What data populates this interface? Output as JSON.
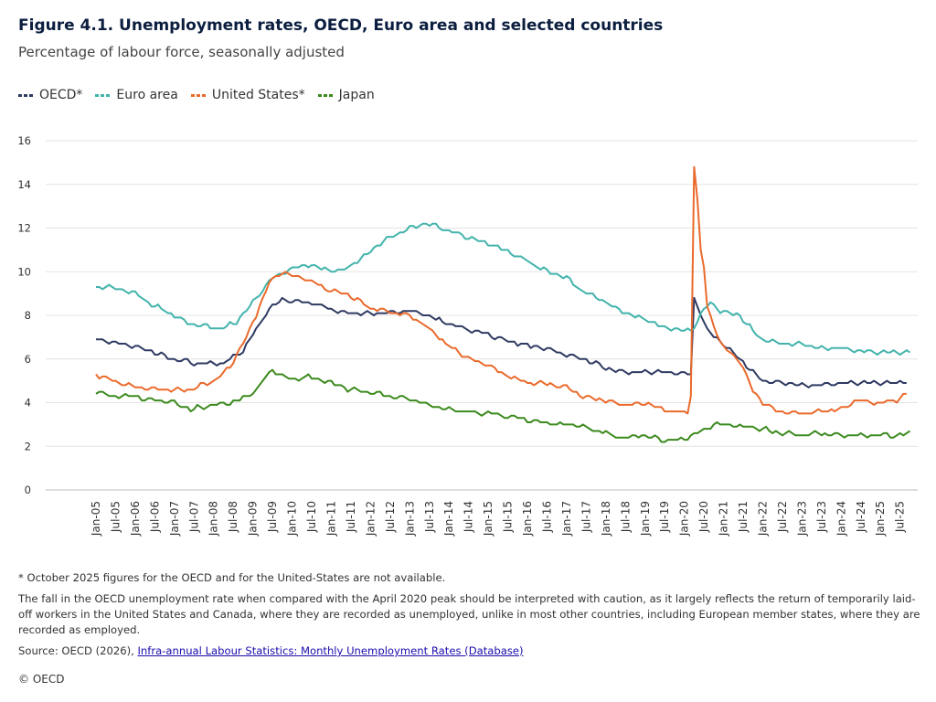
{
  "title": "Figure 4.1. Unemployment rates, OECD, Euro area and selected countries",
  "subtitle": "Percentage of labour force, seasonally adjusted",
  "legend": [
    {
      "label": "OECD*",
      "color": "#2f3a62"
    },
    {
      "label": "Euro area",
      "color": "#42b3ac"
    },
    {
      "label": "United States*",
      "color": "#ea6a2c"
    },
    {
      "label": "Japan",
      "color": "#3b8a1e"
    }
  ],
  "notes": {
    "footnote": "* October 2025 figures for the OECD and for the United-States are not available.",
    "caution": "The fall in the OECD unemployment rate when compared with the April 2020 peak should be interpreted with caution, as it largely reflects the return of temporarily laid-off workers in the United States and Canada, where they are recorded as unemployed, unlike in most other countries, including European member states, where they are recorded as employed.",
    "source_prefix": "Source: OECD (2026), ",
    "source_link": "Infra-annual Labour Statistics: Monthly Unemployment Rates (Database)",
    "copyright": "© OECD"
  },
  "chart_data": {
    "type": "line",
    "title": "Figure 4.1. Unemployment rates, OECD, Euro area and selected countries",
    "ylabel": "Percentage of labour force, seasonally adjusted",
    "ylim": [
      0,
      16
    ],
    "yticks": [
      0,
      2,
      4,
      6,
      8,
      10,
      12,
      14,
      16
    ],
    "grid": true,
    "legend_position": "top-left",
    "x_start": "2005-01",
    "x_end": "2025-10",
    "x_ticks": [
      "Jan-05",
      "Jul-05",
      "Jan-06",
      "Jul-06",
      "Jan-07",
      "Jul-07",
      "Jan-08",
      "Jul-08",
      "Jan-09",
      "Jul-09",
      "Jan-10",
      "Jul-10",
      "Jan-11",
      "Jul-11",
      "Jan-12",
      "Jul-12",
      "Jan-13",
      "Jul-13",
      "Jan-14",
      "Jul-14",
      "Jan-15",
      "Jul-15",
      "Jan-16",
      "Jul-16",
      "Jan-17",
      "Jul-17",
      "Jan-18",
      "Jul-18",
      "Jan-19",
      "Jul-19",
      "Jan-20",
      "Jul-20",
      "Jan-21",
      "Jul-21",
      "Jan-22",
      "Jul-22",
      "Jan-23",
      "Jul-23",
      "Jan-24",
      "Jul-24",
      "Jan-25",
      "Jul-25"
    ],
    "series": [
      {
        "name": "OECD*",
        "color": "#2f3a62",
        "anchors": [
          [
            "2005-01",
            6.9
          ],
          [
            "2006-01",
            6.6
          ],
          [
            "2007-01",
            6.0
          ],
          [
            "2007-07",
            5.8
          ],
          [
            "2008-04",
            5.8
          ],
          [
            "2008-10",
            6.4
          ],
          [
            "2009-06",
            8.3
          ],
          [
            "2009-10",
            8.7
          ],
          [
            "2010-06",
            8.6
          ],
          [
            "2011-01",
            8.3
          ],
          [
            "2011-06",
            8.1
          ],
          [
            "2012-06",
            8.1
          ],
          [
            "2013-01",
            8.2
          ],
          [
            "2013-06",
            8.0
          ],
          [
            "2014-01",
            7.6
          ],
          [
            "2014-06",
            7.4
          ],
          [
            "2015-01",
            7.1
          ],
          [
            "2015-06",
            6.9
          ],
          [
            "2016-01",
            6.6
          ],
          [
            "2016-06",
            6.5
          ],
          [
            "2017-01",
            6.2
          ],
          [
            "2017-06",
            6.0
          ],
          [
            "2018-01",
            5.6
          ],
          [
            "2018-06",
            5.4
          ],
          [
            "2019-01",
            5.4
          ],
          [
            "2019-06",
            5.4
          ],
          [
            "2020-02",
            5.3
          ],
          [
            "2020-03",
            5.3
          ],
          [
            "2020-04",
            8.8
          ],
          [
            "2020-06",
            8.1
          ],
          [
            "2020-08",
            7.3
          ],
          [
            "2020-12",
            6.8
          ],
          [
            "2021-06",
            6.0
          ],
          [
            "2021-10",
            5.4
          ],
          [
            "2022-01",
            5.0
          ],
          [
            "2022-06",
            4.9
          ],
          [
            "2023-01",
            4.8
          ],
          [
            "2023-06",
            4.8
          ],
          [
            "2024-01",
            4.9
          ],
          [
            "2024-06",
            4.9
          ],
          [
            "2025-01",
            4.9
          ],
          [
            "2025-06",
            4.9
          ],
          [
            "2025-09",
            5.0
          ]
        ],
        "last": "2025-09"
      },
      {
        "name": "Euro area",
        "color": "#42b3ac",
        "anchors": [
          [
            "2005-01",
            9.3
          ],
          [
            "2005-06",
            9.3
          ],
          [
            "2006-01",
            9.0
          ],
          [
            "2006-06",
            8.5
          ],
          [
            "2007-01",
            8.0
          ],
          [
            "2007-06",
            7.6
          ],
          [
            "2008-03",
            7.4
          ],
          [
            "2008-08",
            7.7
          ],
          [
            "2009-01",
            8.6
          ],
          [
            "2009-06",
            9.6
          ],
          [
            "2009-12",
            10.1
          ],
          [
            "2010-06",
            10.3
          ],
          [
            "2011-04",
            10.0
          ],
          [
            "2011-10",
            10.6
          ],
          [
            "2012-06",
            11.5
          ],
          [
            "2013-01",
            12.0
          ],
          [
            "2013-06",
            12.2
          ],
          [
            "2014-01",
            11.9
          ],
          [
            "2014-06",
            11.6
          ],
          [
            "2015-01",
            11.3
          ],
          [
            "2015-06",
            11.0
          ],
          [
            "2016-01",
            10.5
          ],
          [
            "2016-06",
            10.1
          ],
          [
            "2017-01",
            9.7
          ],
          [
            "2017-06",
            9.1
          ],
          [
            "2018-01",
            8.6
          ],
          [
            "2018-06",
            8.2
          ],
          [
            "2019-01",
            7.8
          ],
          [
            "2019-06",
            7.5
          ],
          [
            "2020-01",
            7.3
          ],
          [
            "2020-03",
            7.3
          ],
          [
            "2020-06",
            8.0
          ],
          [
            "2020-09",
            8.6
          ],
          [
            "2020-12",
            8.2
          ],
          [
            "2021-06",
            8.0
          ],
          [
            "2021-10",
            7.3
          ],
          [
            "2022-01",
            6.9
          ],
          [
            "2022-06",
            6.7
          ],
          [
            "2023-01",
            6.7
          ],
          [
            "2023-06",
            6.5
          ],
          [
            "2024-01",
            6.5
          ],
          [
            "2024-06",
            6.4
          ],
          [
            "2025-01",
            6.3
          ],
          [
            "2025-06",
            6.3
          ],
          [
            "2025-10",
            6.3
          ]
        ],
        "last": "2025-10"
      },
      {
        "name": "United States*",
        "color": "#ea6a2c",
        "anchors": [
          [
            "2005-01",
            5.3
          ],
          [
            "2005-06",
            5.0
          ],
          [
            "2006-01",
            4.7
          ],
          [
            "2006-06",
            4.6
          ],
          [
            "2007-01",
            4.6
          ],
          [
            "2007-06",
            4.6
          ],
          [
            "2008-01",
            5.0
          ],
          [
            "2008-06",
            5.6
          ],
          [
            "2008-12",
            7.3
          ],
          [
            "2009-06",
            9.5
          ],
          [
            "2009-10",
            10.0
          ],
          [
            "2010-06",
            9.6
          ],
          [
            "2011-01",
            9.1
          ],
          [
            "2011-06",
            9.0
          ],
          [
            "2012-01",
            8.3
          ],
          [
            "2012-06",
            8.2
          ],
          [
            "2013-01",
            8.0
          ],
          [
            "2013-06",
            7.5
          ],
          [
            "2014-01",
            6.6
          ],
          [
            "2014-06",
            6.1
          ],
          [
            "2015-01",
            5.7
          ],
          [
            "2015-06",
            5.3
          ],
          [
            "2016-01",
            4.9
          ],
          [
            "2016-06",
            4.9
          ],
          [
            "2017-01",
            4.7
          ],
          [
            "2017-06",
            4.3
          ],
          [
            "2018-01",
            4.1
          ],
          [
            "2018-06",
            3.9
          ],
          [
            "2019-01",
            4.0
          ],
          [
            "2019-06",
            3.7
          ],
          [
            "2020-02",
            3.5
          ],
          [
            "2020-03",
            4.4
          ],
          [
            "2020-04",
            14.8
          ],
          [
            "2020-05",
            13.2
          ],
          [
            "2020-06",
            11.0
          ],
          [
            "2020-07",
            10.2
          ],
          [
            "2020-08",
            8.4
          ],
          [
            "2020-12",
            6.7
          ],
          [
            "2021-06",
            5.9
          ],
          [
            "2021-10",
            4.5
          ],
          [
            "2022-01",
            4.0
          ],
          [
            "2022-06",
            3.6
          ],
          [
            "2023-01",
            3.5
          ],
          [
            "2023-06",
            3.6
          ],
          [
            "2024-01",
            3.7
          ],
          [
            "2024-06",
            4.1
          ],
          [
            "2025-01",
            4.0
          ],
          [
            "2025-06",
            4.1
          ],
          [
            "2025-09",
            4.4
          ]
        ],
        "last": "2025-09"
      },
      {
        "name": "Japan",
        "color": "#3b8a1e",
        "anchors": [
          [
            "2005-01",
            4.5
          ],
          [
            "2005-06",
            4.3
          ],
          [
            "2006-01",
            4.3
          ],
          [
            "2006-06",
            4.1
          ],
          [
            "2007-01",
            4.0
          ],
          [
            "2007-06",
            3.7
          ],
          [
            "2008-01",
            3.9
          ],
          [
            "2008-06",
            4.0
          ],
          [
            "2008-12",
            4.3
          ],
          [
            "2009-07",
            5.5
          ],
          [
            "2010-01",
            5.0
          ],
          [
            "2010-06",
            5.2
          ],
          [
            "2011-01",
            4.9
          ],
          [
            "2011-06",
            4.6
          ],
          [
            "2012-01",
            4.5
          ],
          [
            "2012-06",
            4.3
          ],
          [
            "2013-01",
            4.2
          ],
          [
            "2013-06",
            3.9
          ],
          [
            "2014-01",
            3.7
          ],
          [
            "2014-06",
            3.6
          ],
          [
            "2015-01",
            3.5
          ],
          [
            "2015-06",
            3.4
          ],
          [
            "2016-01",
            3.2
          ],
          [
            "2016-06",
            3.1
          ],
          [
            "2017-01",
            3.0
          ],
          [
            "2017-06",
            2.9
          ],
          [
            "2018-01",
            2.6
          ],
          [
            "2018-06",
            2.4
          ],
          [
            "2019-01",
            2.5
          ],
          [
            "2019-06",
            2.3
          ],
          [
            "2020-01",
            2.3
          ],
          [
            "2020-06",
            2.7
          ],
          [
            "2020-10",
            3.0
          ],
          [
            "2021-01",
            3.0
          ],
          [
            "2021-06",
            2.9
          ],
          [
            "2022-01",
            2.8
          ],
          [
            "2022-06",
            2.6
          ],
          [
            "2023-01",
            2.5
          ],
          [
            "2023-06",
            2.6
          ],
          [
            "2024-01",
            2.5
          ],
          [
            "2024-06",
            2.5
          ],
          [
            "2025-01",
            2.5
          ],
          [
            "2025-06",
            2.5
          ],
          [
            "2025-10",
            2.6
          ]
        ],
        "last": "2025-10"
      }
    ]
  }
}
